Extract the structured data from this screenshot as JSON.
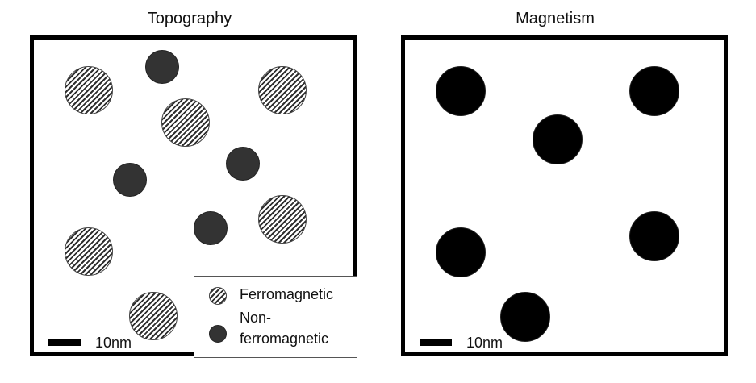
{
  "panels": {
    "topography": {
      "title": "Topography",
      "scale_label": "10nm"
    },
    "magnetism": {
      "title": "Magnetism",
      "scale_label": "10nm"
    }
  },
  "legend": {
    "ferromagnetic": "Ferromagnetic",
    "non_ferromagnetic_line1": "Non-",
    "non_ferromagnetic_line2": "ferromagnetic"
  },
  "colors": {
    "ferromagnetic_hatch": "#2f2f2f",
    "non_ferromagnetic_fill": "#333333",
    "magnetic_signal_fill": "#000000"
  }
}
